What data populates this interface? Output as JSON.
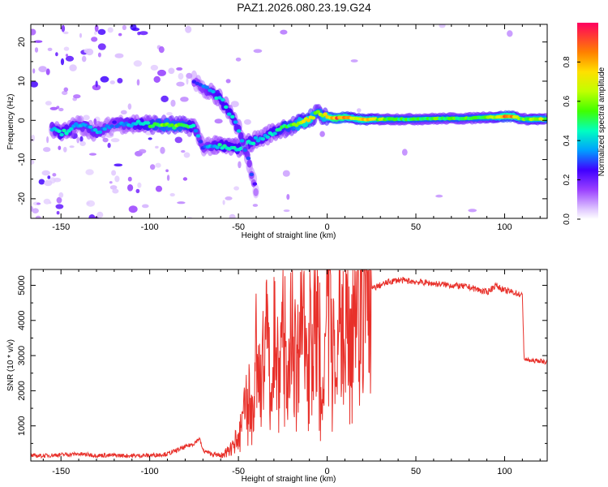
{
  "title": "PAZ1.2026.080.23.19.G24",
  "colors": {
    "signal_line": "#e8302a",
    "axes": "#000000",
    "background": "#ffffff"
  },
  "chart_data": [
    {
      "type": "heatmap",
      "name": "spectrogram",
      "xlabel": "Height of straight line (km)",
      "ylabel": "Frequency (Hz)",
      "xlim": [
        -167,
        124
      ],
      "ylim": [
        -25,
        24.5
      ],
      "xticks": [
        -150,
        -100,
        -50,
        0,
        50,
        100
      ],
      "yticks": [
        -20,
        -10,
        0,
        10,
        20
      ],
      "colorbar": {
        "label": "Normalized spectral amplitude",
        "range": [
          0,
          1
        ],
        "ticks": [
          "0.0",
          "0.2",
          "0.4",
          "0.6",
          "0.8"
        ]
      },
      "ridge": [
        {
          "x": -155,
          "f": -2.0,
          "a": 0.35
        },
        {
          "x": -150,
          "f": -3.5,
          "a": 0.45
        },
        {
          "x": -140,
          "f": -1.0,
          "a": 0.35
        },
        {
          "x": -130,
          "f": -3.0,
          "a": 0.38
        },
        {
          "x": -120,
          "f": -1.0,
          "a": 0.3
        },
        {
          "x": -110,
          "f": -0.8,
          "a": 0.4
        },
        {
          "x": -100,
          "f": -1.0,
          "a": 0.5
        },
        {
          "x": -90,
          "f": -1.2,
          "a": 0.6
        },
        {
          "x": -80,
          "f": -1.5,
          "a": 0.55
        },
        {
          "x": -75,
          "f": -1.5,
          "a": 0.4
        },
        {
          "x": -70,
          "f": -6.5,
          "a": 0.3
        },
        {
          "x": -60,
          "f": -6.5,
          "a": 0.45
        },
        {
          "x": -50,
          "f": -7.0,
          "a": 0.45
        },
        {
          "x": -45,
          "f": -6.0,
          "a": 0.45
        },
        {
          "x": -40,
          "f": -5.0,
          "a": 0.4
        },
        {
          "x": -35,
          "f": -4.0,
          "a": 0.4
        },
        {
          "x": -30,
          "f": -3.0,
          "a": 0.45
        },
        {
          "x": -25,
          "f": -2.0,
          "a": 0.5
        },
        {
          "x": -20,
          "f": -1.5,
          "a": 0.55
        },
        {
          "x": -15,
          "f": -0.8,
          "a": 0.7
        },
        {
          "x": -10,
          "f": 0.5,
          "a": 0.8
        },
        {
          "x": -5,
          "f": 2.0,
          "a": 0.55
        },
        {
          "x": 0,
          "f": 0.8,
          "a": 0.75
        },
        {
          "x": 5,
          "f": 0.5,
          "a": 0.9
        },
        {
          "x": 10,
          "f": 0.8,
          "a": 0.85
        },
        {
          "x": 15,
          "f": 0.5,
          "a": 0.7
        },
        {
          "x": 20,
          "f": 0.2,
          "a": 0.8
        },
        {
          "x": 30,
          "f": 0.3,
          "a": 0.6
        },
        {
          "x": 40,
          "f": 0.3,
          "a": 0.55
        },
        {
          "x": 50,
          "f": 0.3,
          "a": 0.55
        },
        {
          "x": 60,
          "f": 0.4,
          "a": 0.55
        },
        {
          "x": 70,
          "f": 0.5,
          "a": 0.55
        },
        {
          "x": 80,
          "f": 0.5,
          "a": 0.55
        },
        {
          "x": 90,
          "f": 0.8,
          "a": 0.6
        },
        {
          "x": 95,
          "f": 0.8,
          "a": 0.65
        },
        {
          "x": 100,
          "f": 1.0,
          "a": 0.85
        },
        {
          "x": 105,
          "f": 1.0,
          "a": 0.8
        },
        {
          "x": 110,
          "f": 0.3,
          "a": 0.55
        },
        {
          "x": 115,
          "f": 0.3,
          "a": 0.65
        },
        {
          "x": 120,
          "f": 0.3,
          "a": 0.65
        },
        {
          "x": 124,
          "f": 0.3,
          "a": 0.6
        }
      ],
      "branch": [
        {
          "x": -75,
          "f": 10.0,
          "a": 0.25
        },
        {
          "x": -70,
          "f": 8.5,
          "a": 0.3
        },
        {
          "x": -65,
          "f": 7.0,
          "a": 0.4
        },
        {
          "x": -60,
          "f": 5.5,
          "a": 0.45
        },
        {
          "x": -55,
          "f": 2.0,
          "a": 0.45
        },
        {
          "x": -50,
          "f": -2.0,
          "a": 0.4
        },
        {
          "x": -45,
          "f": -9.0,
          "a": 0.35
        },
        {
          "x": -40,
          "f": -18.0,
          "a": 0.2
        }
      ]
    },
    {
      "type": "line",
      "name": "snr",
      "xlabel": "Height of straight line (km)",
      "ylabel": "SNR (10 * v/v)",
      "xlim": [
        -167,
        124
      ],
      "ylim": [
        0,
        5450
      ],
      "xticks": [
        -150,
        -100,
        -50,
        0,
        50,
        100
      ],
      "yticks": [
        1000,
        2000,
        3000,
        4000,
        5000
      ],
      "series": [
        {
          "name": "SNR",
          "x": [
            -167,
            -160,
            -150,
            -140,
            -130,
            -120,
            -110,
            -100,
            -90,
            -85,
            -80,
            -75,
            -72,
            -70,
            -65,
            -60,
            -55,
            -50,
            -48,
            -45,
            -42,
            -40,
            -37,
            -35,
            -32,
            -30,
            -27,
            -25,
            -22,
            -20,
            -17,
            -15,
            -12,
            -10,
            -7,
            -5,
            -3,
            0,
            3,
            5,
            8,
            10,
            13,
            15,
            18,
            20,
            25,
            30,
            35,
            40,
            50,
            60,
            70,
            80,
            90,
            95,
            100,
            105,
            108,
            110,
            111,
            115,
            120,
            124
          ],
          "values": [
            150,
            150,
            180,
            200,
            160,
            160,
            150,
            160,
            200,
            300,
            400,
            500,
            650,
            300,
            200,
            150,
            300,
            700,
            1000,
            2000,
            1500,
            3200,
            1800,
            4500,
            2200,
            4800,
            2500,
            4500,
            2000,
            4700,
            2500,
            4500,
            3000,
            4600,
            3500,
            4800,
            1000,
            4500,
            3500,
            4900,
            4000,
            5000,
            4300,
            5000,
            4600,
            4800,
            4900,
            5000,
            5100,
            5150,
            5100,
            5050,
            5000,
            4950,
            4800,
            5000,
            4850,
            4800,
            4750,
            4700,
            2900,
            2850,
            2850,
            2800
          ]
        }
      ]
    }
  ]
}
